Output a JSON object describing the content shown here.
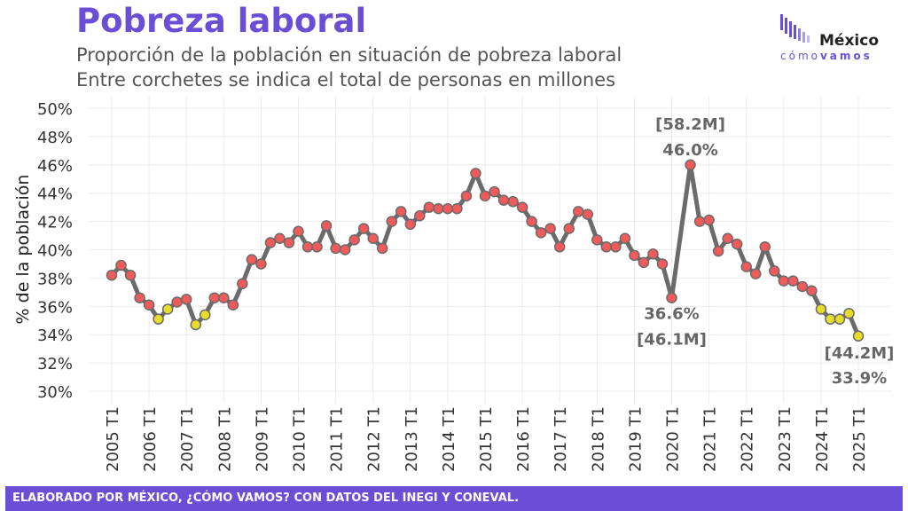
{
  "title": "Pobreza laboral",
  "subtitle1": "Proporción de la población en situación de pobreza laboral",
  "subtitle2": "Entre corchetes se indica el total de personas en millones",
  "logo": {
    "line1": "México",
    "line2a": "cómo",
    "line2b": "vamos"
  },
  "footer": "ELABORADO POR MÉXICO, ¿CÓMO VAMOS? CON DATOS DEL INEGI Y CONEVAL.",
  "colors": {
    "accent": "#6a4fd6",
    "line": "#6b6b6b",
    "point_high": "#f05a5a",
    "point_low": "#e8dc2a"
  },
  "chart_data": {
    "type": "line",
    "ylabel": "% de la población",
    "ylim": [
      30,
      50
    ],
    "yticks": [
      "30%",
      "32%",
      "34%",
      "36%",
      "38%",
      "40%",
      "42%",
      "44%",
      "46%",
      "48%",
      "50%"
    ],
    "xticks": [
      "2005 T1",
      "2006 T1",
      "2007 T1",
      "2008 T1",
      "2009 T1",
      "2010 T1",
      "2011 T1",
      "2012 T1",
      "2013 T1",
      "2014 T1",
      "2015 T1",
      "2016 T1",
      "2017 T1",
      "2018 T1",
      "2019 T1",
      "2020 T1",
      "2021 T1",
      "2022 T1",
      "2023 T1",
      "2024 T1",
      "2025 T1"
    ],
    "grid": true,
    "start": "2005 T1",
    "values": [
      38.2,
      38.9,
      38.2,
      36.6,
      36.1,
      35.1,
      35.8,
      36.3,
      36.5,
      34.7,
      35.4,
      36.6,
      36.6,
      36.1,
      37.6,
      39.3,
      39.0,
      40.5,
      40.8,
      40.5,
      41.3,
      40.2,
      40.2,
      41.7,
      40.1,
      40.0,
      40.7,
      41.5,
      40.8,
      40.1,
      42.0,
      42.7,
      41.8,
      42.4,
      43.0,
      42.9,
      42.9,
      42.9,
      43.8,
      45.4,
      43.8,
      44.1,
      43.5,
      43.4,
      43.0,
      42.0,
      41.2,
      41.5,
      40.2,
      41.5,
      42.7,
      42.5,
      40.7,
      40.2,
      40.2,
      40.8,
      39.6,
      39.1,
      39.7,
      39.0,
      36.6,
      null,
      46.0,
      42.0,
      42.1,
      39.9,
      40.8,
      40.4,
      38.8,
      38.3,
      40.2,
      38.5,
      37.8,
      37.8,
      37.4,
      37.1,
      35.8,
      35.1,
      35.1,
      35.5,
      33.9
    ],
    "low_threshold": 36,
    "annotations": [
      {
        "period": "2020 T1",
        "value_label": "36.6%",
        "people_label": "[46.1M]"
      },
      {
        "period": "2020 T3",
        "value_label": "46.0%",
        "people_label": "[58.2M]"
      },
      {
        "period": "2025 T1",
        "value_label": "33.9%",
        "people_label": "[44.2M]"
      }
    ]
  }
}
